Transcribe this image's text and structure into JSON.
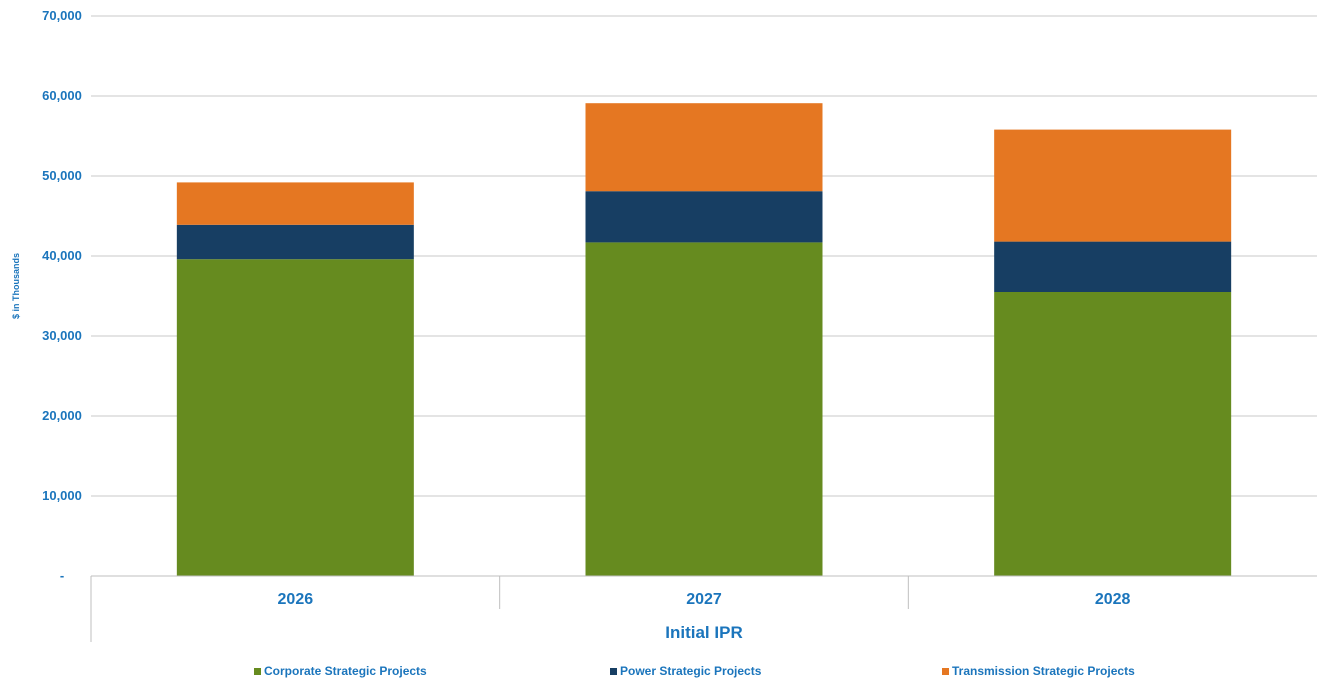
{
  "chart_data": {
    "type": "bar",
    "stacked": true,
    "categories": [
      "2026",
      "2027",
      "2028"
    ],
    "group_label": "Initial IPR",
    "ylabel": "$ in Thousands",
    "ylim": [
      0,
      70000
    ],
    "yticks": [
      {
        "value": 0,
        "label": "-"
      },
      {
        "value": 10000,
        "label": "10,000"
      },
      {
        "value": 20000,
        "label": "20,000"
      },
      {
        "value": 30000,
        "label": "30,000"
      },
      {
        "value": 40000,
        "label": "40,000"
      },
      {
        "value": 50000,
        "label": "50,000"
      },
      {
        "value": 60000,
        "label": "60,000"
      },
      {
        "value": 70000,
        "label": "70,000"
      }
    ],
    "grid": true,
    "legend_position": "bottom",
    "series": [
      {
        "name": "Corporate Strategic Projects",
        "color": "#668b1f",
        "values": [
          39600,
          41700,
          35500
        ]
      },
      {
        "name": "Power Strategic Projects",
        "color": "#173e63",
        "values": [
          4300,
          6400,
          6300
        ]
      },
      {
        "name": "Transmission Strategic Projects",
        "color": "#e57722",
        "values": [
          5300,
          11000,
          14000
        ]
      }
    ]
  }
}
